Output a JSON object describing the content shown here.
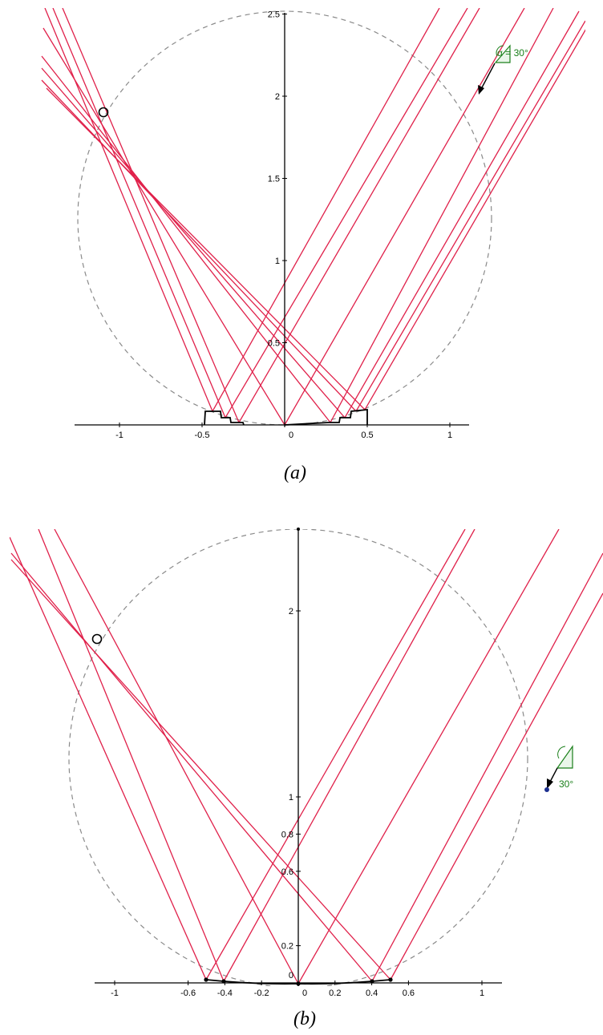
{
  "colors": {
    "ray": "#e0204a",
    "guide": "#8a8a8a",
    "angle": "#1a7f1a",
    "point": "#1c2f8f"
  },
  "panels": [
    {
      "id": "a",
      "caption": "(a)",
      "angle_label": "α = 30°",
      "x_ticks": [
        {
          "label": "-1",
          "v": -1
        },
        {
          "label": "-0.5",
          "v": -0.5
        },
        {
          "label": "0",
          "v": 0
        },
        {
          "label": "0.5",
          "v": 0.5
        },
        {
          "label": "1",
          "v": 1
        }
      ],
      "y_ticks": [
        {
          "label": "0.5",
          "v": 0.5
        },
        {
          "label": "1",
          "v": 1
        },
        {
          "label": "1.5",
          "v": 1.5
        },
        {
          "label": "2",
          "v": 2
        },
        {
          "label": "2.5",
          "v": 2.5
        }
      ]
    },
    {
      "id": "b",
      "caption": "(b)",
      "angle_label": "30°",
      "x_ticks": [
        {
          "label": "-1",
          "v": -1
        },
        {
          "label": "-0.6",
          "v": -0.6
        },
        {
          "label": "-0.4",
          "v": -0.4
        },
        {
          "label": "-0.2",
          "v": -0.2
        },
        {
          "label": "0",
          "v": 0
        },
        {
          "label": "0.2",
          "v": 0.2
        },
        {
          "label": "0.4",
          "v": 0.4
        },
        {
          "label": "0.6",
          "v": 0.6
        },
        {
          "label": "1",
          "v": 1
        }
      ],
      "y_ticks": [
        {
          "label": "0",
          "v": 0
        },
        {
          "label": "0.2",
          "v": 0.2
        },
        {
          "label": "0.6",
          "v": 0.6
        },
        {
          "label": "0.8",
          "v": 0.8
        },
        {
          "label": "1",
          "v": 1
        },
        {
          "label": "2",
          "v": 2
        }
      ]
    }
  ]
}
